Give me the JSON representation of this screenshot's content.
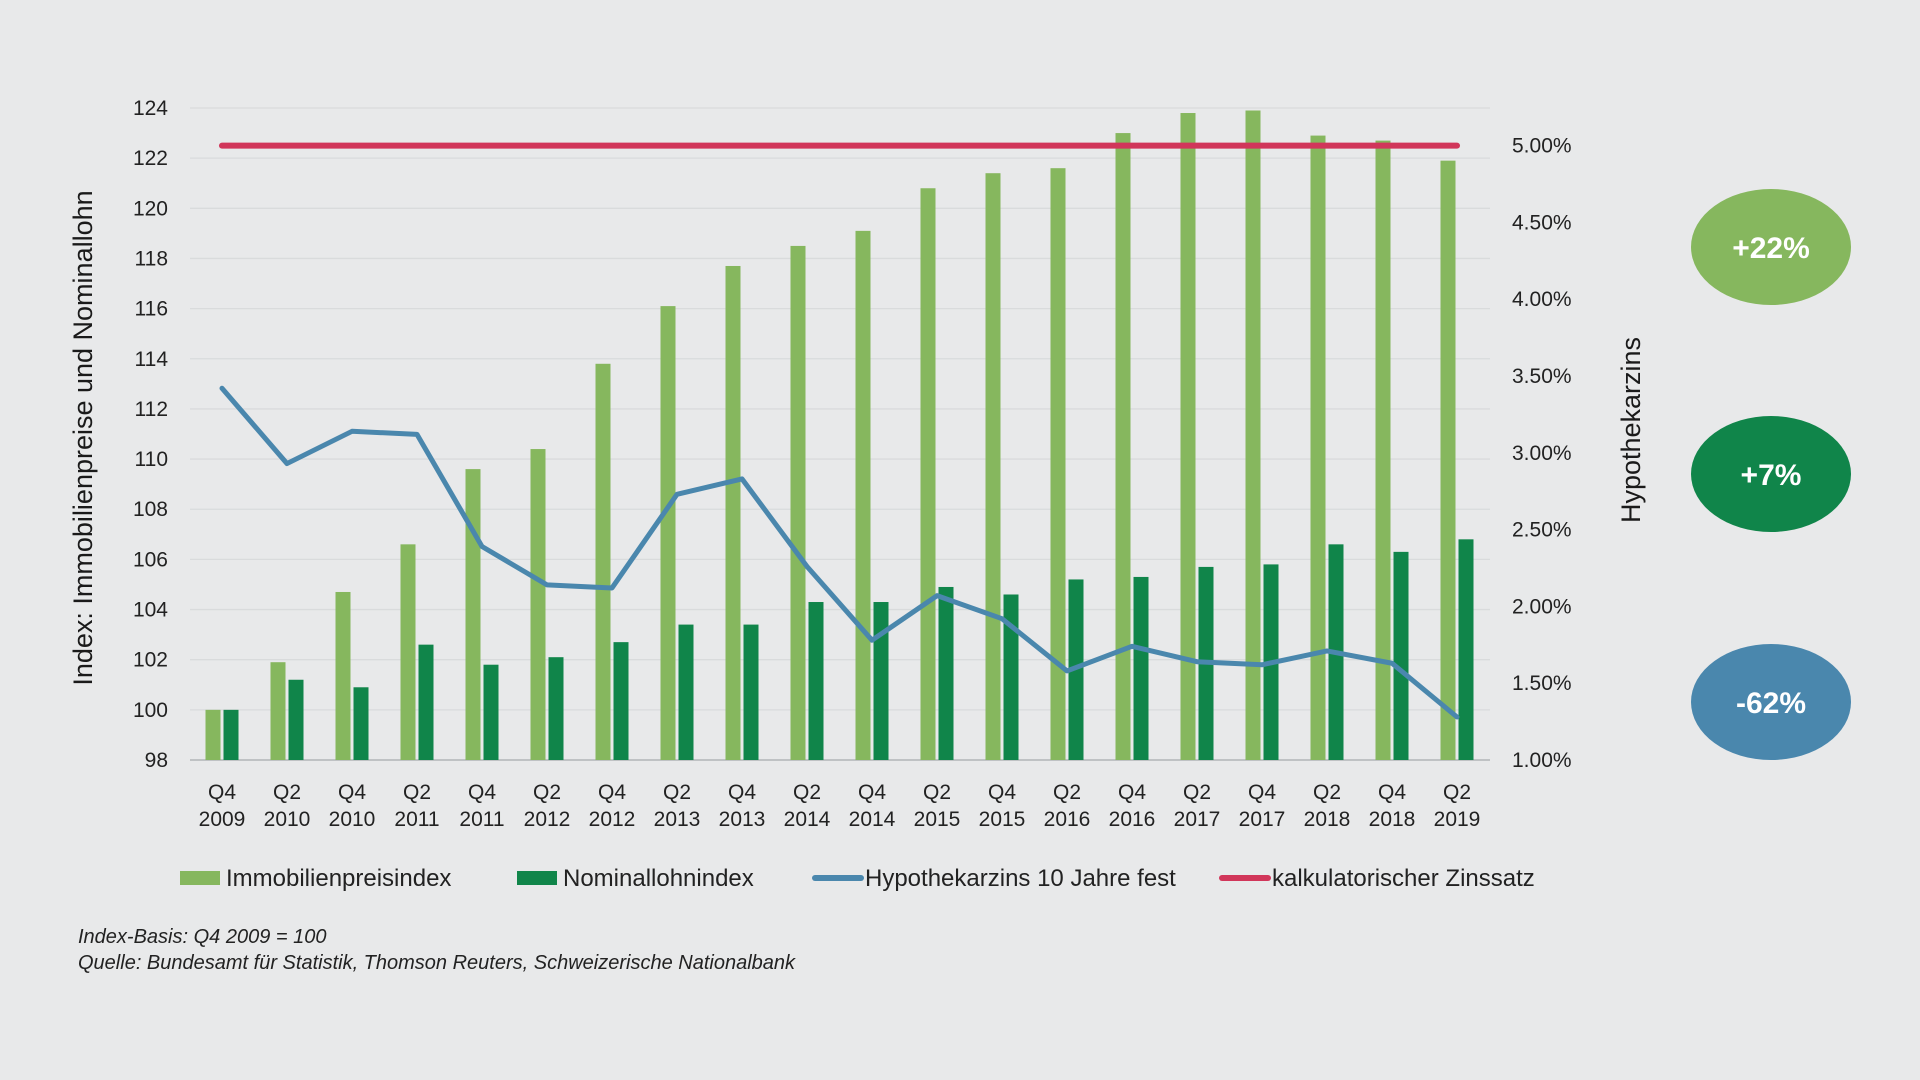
{
  "chart_data": {
    "type": "bar",
    "categories": [
      [
        "Q4",
        "2009"
      ],
      [
        "Q2",
        "2010"
      ],
      [
        "Q4",
        "2010"
      ],
      [
        "Q2",
        "2011"
      ],
      [
        "Q4",
        "2011"
      ],
      [
        "Q2",
        "2012"
      ],
      [
        "Q4",
        "2012"
      ],
      [
        "Q2",
        "2013"
      ],
      [
        "Q4",
        "2013"
      ],
      [
        "Q2",
        "2014"
      ],
      [
        "Q4",
        "2014"
      ],
      [
        "Q2",
        "2015"
      ],
      [
        "Q4",
        "2015"
      ],
      [
        "Q2",
        "2016"
      ],
      [
        "Q4",
        "2016"
      ],
      [
        "Q2",
        "2017"
      ],
      [
        "Q4",
        "2017"
      ],
      [
        "Q2",
        "2018"
      ],
      [
        "Q4",
        "2018"
      ],
      [
        "Q2",
        "2019"
      ]
    ],
    "series": [
      {
        "name": "Immobilienpreisindex",
        "kind": "bar",
        "axis": "left",
        "color": "#86b75e",
        "values": [
          100,
          101.9,
          104.7,
          106.6,
          109.6,
          110.4,
          113.8,
          116.1,
          117.7,
          118.5,
          119.1,
          120.8,
          121.4,
          121.6,
          123.0,
          123.8,
          123.9,
          122.9,
          122.7,
          121.9
        ]
      },
      {
        "name": "Nominallohnindex",
        "kind": "bar",
        "axis": "left",
        "color": "#10854a",
        "values": [
          100,
          101.2,
          100.9,
          102.6,
          101.8,
          102.1,
          102.7,
          103.4,
          103.4,
          104.3,
          104.3,
          104.9,
          104.6,
          105.2,
          105.3,
          105.7,
          105.8,
          106.6,
          106.3,
          106.8
        ]
      },
      {
        "name": "Hypothekarzins 10 Jahre fest",
        "kind": "line",
        "axis": "right",
        "color": "#4a87ad",
        "values": [
          3.42,
          2.93,
          3.14,
          3.12,
          2.39,
          2.14,
          2.12,
          2.73,
          2.83,
          2.26,
          1.78,
          2.07,
          1.92,
          1.58,
          1.74,
          1.64,
          1.62,
          1.71,
          1.63,
          1.28
        ]
      },
      {
        "name": "kalkulatorischer Zinssatz",
        "kind": "line",
        "axis": "right",
        "color": "#d1365a",
        "values": [
          5.0,
          5.0,
          5.0,
          5.0,
          5.0,
          5.0,
          5.0,
          5.0,
          5.0,
          5.0,
          5.0,
          5.0,
          5.0,
          5.0,
          5.0,
          5.0,
          5.0,
          5.0,
          5.0,
          5.0
        ]
      }
    ],
    "ylabel": "Index: Immobilienpreise und Nominallohn",
    "ylim": [
      98,
      124
    ],
    "yticks": [
      98,
      100,
      102,
      104,
      106,
      108,
      110,
      112,
      114,
      116,
      118,
      120,
      122,
      124
    ],
    "y2label": "Hypothekarzins",
    "y2lim": [
      1.0,
      5.25
    ],
    "y2ticks": [
      {
        "value": 1.0,
        "label": "1.00%"
      },
      {
        "value": 1.5,
        "label": "1.50%"
      },
      {
        "value": 2.0,
        "label": "2.00%"
      },
      {
        "value": 2.5,
        "label": "2.50%"
      },
      {
        "value": 3.0,
        "label": "3.00%"
      },
      {
        "value": 3.5,
        "label": "3.50%"
      },
      {
        "value": 4.0,
        "label": "4.00%"
      },
      {
        "value": 4.5,
        "label": "4.50%"
      },
      {
        "value": 5.0,
        "label": "5.00%"
      }
    ],
    "grid": true,
    "legend_position": "bottom"
  },
  "badges": [
    {
      "label": "+22%",
      "color": "#86b75e"
    },
    {
      "label": "+7%",
      "color": "#10854a"
    },
    {
      "label": "-62%",
      "color": "#4a87ad"
    }
  ],
  "footnotes": {
    "basis": "Index-Basis: Q4 2009 = 100",
    "source": "Quelle: Bundesamt für Statistik, Thomson Reuters, Schweizerische Nationalbank"
  }
}
